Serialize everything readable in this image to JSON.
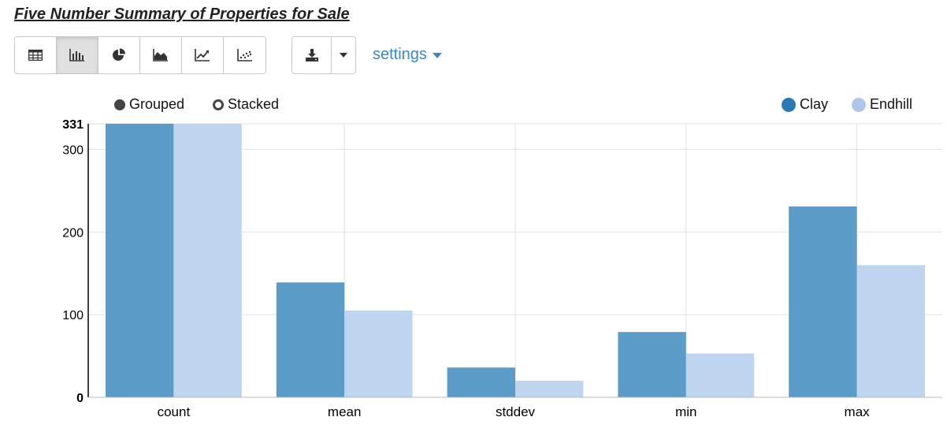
{
  "page": {
    "title": "Five Number Summary of Properties for Sale",
    "toolbar": {
      "views": [
        {
          "name": "table-view-button",
          "icon": "table-icon",
          "active": false
        },
        {
          "name": "bar-chart-view-button",
          "icon": "bar-chart-icon",
          "active": true
        },
        {
          "name": "pie-chart-view-button",
          "icon": "pie-chart-icon",
          "active": false
        },
        {
          "name": "area-chart-view-button",
          "icon": "area-chart-icon",
          "active": false
        },
        {
          "name": "line-chart-view-button",
          "icon": "line-chart-icon",
          "active": false
        },
        {
          "name": "scatter-chart-view-button",
          "icon": "scatter-chart-icon",
          "active": false
        }
      ],
      "download_icon": "download-icon",
      "dropdown_icon": "caret-down-icon",
      "settings_label": "settings"
    },
    "mode": {
      "grouped_label": "Grouped",
      "stacked_label": "Stacked",
      "selected": "Grouped"
    }
  },
  "colors": {
    "clay": "#5a9bc8",
    "endhill": "#bfd4ee",
    "clay_legend": "#2a78b6",
    "endhill_legend": "#aec7e8",
    "accent": "#3a87c7"
  },
  "chart_data": {
    "type": "bar",
    "title": "",
    "xlabel": "",
    "ylabel": "",
    "categories": [
      "count",
      "mean",
      "stddev",
      "min",
      "max"
    ],
    "series": [
      {
        "name": "Clay",
        "values": [
          331,
          139,
          36,
          79,
          231
        ]
      },
      {
        "name": "Endhill",
        "values": [
          331,
          105,
          20,
          53,
          160
        ]
      }
    ],
    "ylim": [
      0,
      331
    ],
    "yticks": [
      0,
      100,
      200,
      300,
      331
    ],
    "grid": true,
    "legend": "top-right",
    "mode": "grouped"
  }
}
